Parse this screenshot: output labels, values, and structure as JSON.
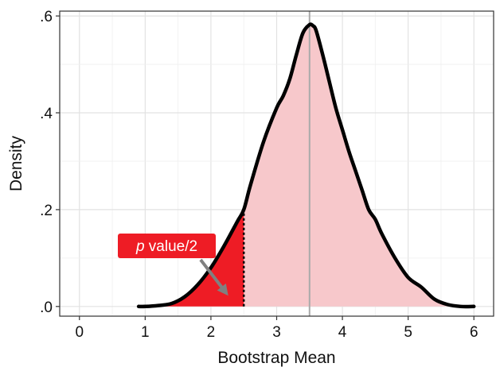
{
  "colors": {
    "density_curve": "#000000",
    "shade_fill": "#f7c8cb",
    "tail_fill": "#ee1c25",
    "callout_bg": "#ee1c25",
    "callout_text": "#ffffff",
    "arrow": "#808080",
    "vline": "#aaaaaa",
    "grid_major": "#e2e2e2",
    "grid_minor": "#efefef",
    "panel_border": "#333333"
  },
  "chart_data": {
    "type": "area",
    "xlabel": "Bootstrap Mean",
    "ylabel": "Density",
    "xlim": [
      -0.3,
      6.3
    ],
    "ylim": [
      -0.02,
      0.61
    ],
    "x_ticks": [
      0,
      1,
      2,
      3,
      4,
      5,
      6
    ],
    "x_tick_labels": [
      "0",
      "1",
      "2",
      "3",
      "4",
      "5",
      "6"
    ],
    "y_ticks": [
      0.0,
      0.2,
      0.4,
      0.6
    ],
    "y_tick_labels": [
      ".0",
      ".2",
      ".4",
      ".6"
    ],
    "grid": true,
    "density": {
      "x": [
        0.9,
        1.0,
        1.2,
        1.4,
        1.6,
        1.8,
        2.0,
        2.2,
        2.4,
        2.5,
        2.6,
        2.8,
        3.0,
        3.1,
        3.2,
        3.3,
        3.4,
        3.5,
        3.55,
        3.6,
        3.7,
        3.8,
        3.9,
        4.0,
        4.1,
        4.2,
        4.3,
        4.4,
        4.5,
        4.6,
        4.8,
        5.0,
        5.2,
        5.4,
        5.6,
        5.8,
        6.0
      ],
      "y": [
        0.0,
        0.0,
        0.002,
        0.006,
        0.02,
        0.045,
        0.08,
        0.125,
        0.175,
        0.2,
        0.25,
        0.34,
        0.41,
        0.435,
        0.47,
        0.52,
        0.565,
        0.582,
        0.58,
        0.57,
        0.52,
        0.465,
        0.41,
        0.365,
        0.32,
        0.28,
        0.24,
        0.2,
        0.18,
        0.15,
        0.1,
        0.06,
        0.04,
        0.015,
        0.004,
        0.0,
        0.0
      ]
    },
    "shaded_region": [
      0.9,
      5.8
    ],
    "tail_cutoff": 2.5,
    "vline_x": 3.5,
    "annotation": {
      "italic": "p",
      "text": " value/2",
      "label_anchor": [
        1.4,
        0.12
      ],
      "arrow_to": [
        2.22,
        0.03
      ]
    }
  }
}
